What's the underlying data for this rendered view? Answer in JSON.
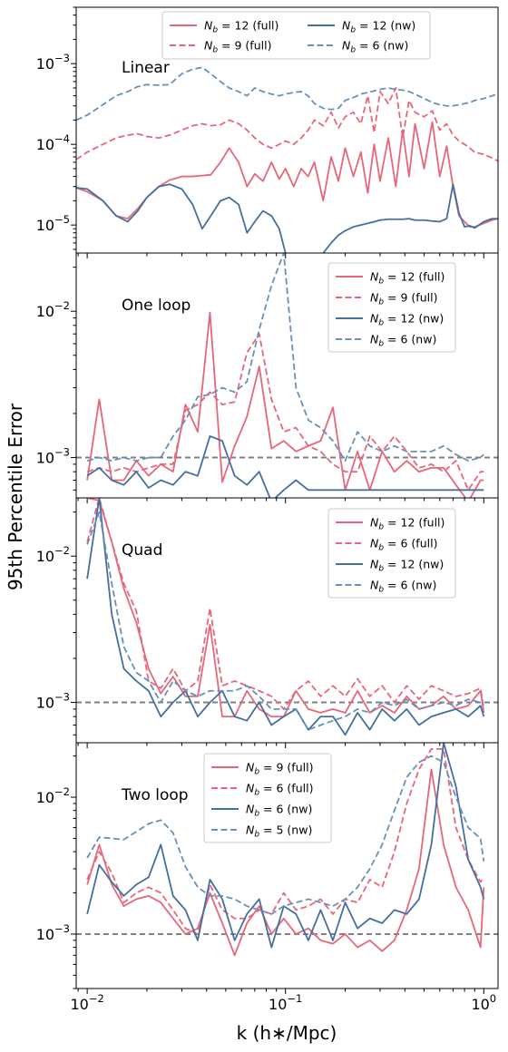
{
  "figure": {
    "ylabel": "95th Percentile Error",
    "xlabel": "k (h∗/Mpc)",
    "xscale": "log",
    "yscale": "log",
    "xlim": [
      0.0088,
      1.18
    ],
    "xticks": [
      {
        "value": 0.01,
        "mantissa": "10",
        "exp": "−2"
      },
      {
        "value": 0.1,
        "mantissa": "10",
        "exp": "−1"
      },
      {
        "value": 1,
        "mantissa": "10",
        "exp": "0"
      }
    ],
    "colors": {
      "full": "#e7677a",
      "nw": "#4470a0",
      "nw_dashed": "#6a90b8",
      "reference": "#808080"
    }
  },
  "chart_data": [
    {
      "type": "line",
      "label": "Linear",
      "ylim": [
        4.5e-06,
        0.005
      ],
      "yticks": [
        {
          "value": 1e-05,
          "mantissa": "10",
          "exp": "−5"
        },
        {
          "value": 0.0001,
          "mantissa": "10",
          "exp": "−4"
        },
        {
          "value": 0.001,
          "mantissa": "10",
          "exp": "−3"
        }
      ],
      "reference_line": null,
      "legend": {
        "placement": "top-center",
        "columns": 2
      },
      "x": [
        0.0088,
        0.01,
        0.012,
        0.014,
        0.016,
        0.018,
        0.02,
        0.023,
        0.026,
        0.03,
        0.034,
        0.038,
        0.042,
        0.047,
        0.052,
        0.058,
        0.064,
        0.07,
        0.077,
        0.085,
        0.093,
        0.1,
        0.11,
        0.12,
        0.13,
        0.14,
        0.155,
        0.17,
        0.185,
        0.2,
        0.22,
        0.24,
        0.26,
        0.28,
        0.3,
        0.33,
        0.36,
        0.39,
        0.42,
        0.45,
        0.5,
        0.55,
        0.6,
        0.65,
        0.7,
        0.75,
        0.8,
        0.85,
        0.9,
        1.0,
        1.1,
        1.18
      ],
      "series": [
        {
          "name": "N_b = 12 (full)",
          "color": "#e7677a",
          "dash": "solid",
          "values": [
            2.9e-05,
            2.6e-05,
            2e-05,
            1.3e-05,
            1.2e-05,
            1.6e-05,
            2.2e-05,
            3e-05,
            3.6e-05,
            4e-05,
            4e-05,
            4.1e-05,
            4.2e-05,
            6e-05,
            9e-05,
            6e-05,
            3e-05,
            4.3e-05,
            3.5e-05,
            6e-05,
            3.7e-05,
            5e-05,
            3e-05,
            5e-05,
            4e-05,
            6e-05,
            2e-05,
            7e-05,
            3.5e-05,
            9e-05,
            4e-05,
            8e-05,
            2.5e-05,
            0.0001,
            3.5e-05,
            0.00012,
            3e-05,
            0.00015,
            4e-05,
            0.00018,
            5e-05,
            0.00019,
            4e-05,
            9.5e-05,
            3e-05,
            1.3e-05,
            1.1e-05,
            9.5e-06,
            9.5e-06,
            1.05e-05,
            1.15e-05,
            1.2e-05
          ]
        },
        {
          "name": "N_b = 9 (full)",
          "color": "#e7677a",
          "dash": "dashed",
          "values": [
            6.5e-05,
            8e-05,
            0.0001,
            0.00012,
            0.00013,
            0.000135,
            0.000125,
            0.00012,
            0.00013,
            0.00015,
            0.00017,
            0.00018,
            0.00017,
            0.000175,
            0.0002,
            0.00018,
            0.00015,
            0.00012,
            0.0001,
            9e-05,
            0.0001,
            0.00011,
            0.0001,
            0.00012,
            0.00015,
            0.0002,
            0.00017,
            0.00025,
            0.00016,
            0.00022,
            0.00025,
            0.00018,
            0.0004,
            0.00014,
            0.00045,
            0.00032,
            0.0005,
            0.00012,
            0.00035,
            0.00025,
            0.00022,
            0.00026,
            0.00015,
            0.00018,
            0.00013,
            0.00011,
            0.0001,
            9e-05,
            8e-05,
            7.5e-05,
            6.8e-05,
            6.2e-05
          ]
        },
        {
          "name": "N_b = 12 (nw)",
          "color": "#4470a0",
          "dash": "solid",
          "values": [
            2.9e-05,
            2.8e-05,
            2e-05,
            1.3e-05,
            1.1e-05,
            1.5e-05,
            2.2e-05,
            3e-05,
            3.2e-05,
            2.8e-05,
            1.8e-05,
            9e-06,
            1.3e-05,
            2e-05,
            2.2e-05,
            1.8e-05,
            8e-06,
            1.1e-05,
            1.5e-05,
            1.3e-05,
            9e-06,
            4.5e-06,
            null,
            null,
            null,
            null,
            4.5e-06,
            6e-06,
            7.5e-06,
            8.5e-06,
            9.5e-06,
            1e-05,
            1.05e-05,
            1.1e-05,
            1.15e-05,
            1.18e-05,
            1.18e-05,
            1.18e-05,
            1.2e-05,
            1.15e-05,
            1.15e-05,
            1.12e-05,
            1.1e-05,
            1.2e-05,
            3.2e-05,
            1.4e-05,
            9.5e-06,
            9.8e-06,
            9.2e-06,
            1.1e-05,
            1.2e-05,
            1.2e-05
          ]
        },
        {
          "name": "N_b = 6 (nw)",
          "color": "#6a90b8",
          "dash": "dashed",
          "values": [
            0.0002,
            0.00023,
            0.00031,
            0.0004,
            0.00045,
            0.00052,
            0.00055,
            0.00054,
            0.00055,
            0.00075,
            0.00085,
            0.0009,
            0.00075,
            0.0006,
            0.0005,
            0.00045,
            0.0004,
            0.0005,
            0.00045,
            0.00042,
            0.0004,
            0.00042,
            0.00044,
            0.00045,
            0.0004,
            0.00032,
            0.00028,
            0.00027,
            0.00028,
            0.00035,
            0.00038,
            0.00042,
            0.00044,
            0.00046,
            0.00048,
            0.0005,
            0.00048,
            0.00047,
            0.00045,
            0.00042,
            0.00037,
            0.00033,
            0.00031,
            0.0003,
            0.0003,
            0.00031,
            0.00032,
            0.00033,
            0.00035,
            0.00037,
            0.0004,
            0.00042
          ]
        }
      ]
    },
    {
      "type": "line",
      "label": "One loop",
      "ylim": [
        0.00053,
        0.025
      ],
      "yticks": [
        {
          "value": 0.001,
          "mantissa": "10",
          "exp": "−3"
        },
        {
          "value": 0.01,
          "mantissa": "10",
          "exp": "−2"
        }
      ],
      "reference_line": 0.001,
      "legend": {
        "placement": "top-right",
        "columns": 1
      },
      "x": [
        0.01,
        0.0115,
        0.0133,
        0.0153,
        0.0177,
        0.0204,
        0.0235,
        0.0271,
        0.0313,
        0.0361,
        0.0416,
        0.048,
        0.0554,
        0.0639,
        0.0737,
        0.085,
        0.098,
        0.113,
        0.1304,
        0.1504,
        0.1735,
        0.2001,
        0.2309,
        0.2663,
        0.3072,
        0.3544,
        0.4088,
        0.4716,
        0.544,
        0.6275,
        0.7239,
        0.835,
        0.9633,
        1.0
      ],
      "series": [
        {
          "name": "N_b = 12 (full)",
          "color": "#e7677a",
          "dash": "solid",
          "values": [
            0.0007,
            0.0025,
            0.0007,
            0.0007,
            0.00095,
            0.00075,
            0.0009,
            0.0008,
            0.0023,
            0.0015,
            0.0098,
            0.00068,
            0.0012,
            0.0019,
            0.0042,
            0.00115,
            0.0013,
            0.0011,
            0.0012,
            0.0013,
            0.0022,
            0.0006,
            0.0011,
            0.0006,
            0.0011,
            0.0008,
            0.00095,
            0.0008,
            0.00085,
            0.00085,
            0.00065,
            0.0005,
            0.0007,
            0.0007
          ]
        },
        {
          "name": "N_b = 9 (full)",
          "color": "#e7677a",
          "dash": "dashed",
          "values": [
            0.0008,
            0.00085,
            0.0008,
            0.00085,
            0.0008,
            0.00085,
            0.0009,
            0.0009,
            0.0021,
            0.0023,
            0.0028,
            0.0023,
            0.0024,
            0.0052,
            0.007,
            0.0025,
            0.0015,
            0.0016,
            0.0012,
            0.0011,
            0.0009,
            0.0008,
            0.0008,
            0.0014,
            0.0011,
            0.0014,
            0.0011,
            0.00085,
            0.0009,
            0.0008,
            0.00095,
            0.0006,
            0.0008,
            0.0008
          ]
        },
        {
          "name": "N_b = 12 (nw)",
          "color": "#4470a0",
          "dash": "solid",
          "values": [
            0.00075,
            0.00085,
            0.0007,
            0.00065,
            0.0008,
            0.00062,
            0.0007,
            0.00065,
            0.0008,
            0.00075,
            0.0014,
            0.0013,
            0.00075,
            0.00065,
            0.0008,
            0.0005,
            0.0006,
            0.0007,
            0.0006,
            0.0006,
            0.0006,
            0.0006,
            0.0006,
            0.0006,
            0.0006,
            0.0006,
            0.0006,
            0.0006,
            0.0006,
            0.0006,
            0.0006,
            0.0006,
            0.0006,
            0.0006
          ]
        },
        {
          "name": "N_b = 6 (nw)",
          "color": "#6a90b8",
          "dash": "dashed",
          "values": [
            0.00095,
            0.001,
            0.00095,
            0.001,
            0.00095,
            0.001,
            0.001,
            0.0014,
            0.0018,
            0.0026,
            0.0027,
            0.003,
            0.0028,
            0.0033,
            0.0075,
            0.015,
            0.025,
            0.003,
            0.0018,
            0.0016,
            0.0013,
            0.00095,
            0.0015,
            0.0012,
            0.0011,
            0.0012,
            0.0011,
            0.0011,
            0.0011,
            0.0012,
            0.00105,
            0.00095,
            0.001,
            0.00105
          ]
        }
      ]
    },
    {
      "type": "line",
      "label": "Quad",
      "ylim": [
        0.00053,
        0.025
      ],
      "yticks": [
        {
          "value": 0.001,
          "mantissa": "10",
          "exp": "−3"
        },
        {
          "value": 0.01,
          "mantissa": "10",
          "exp": "−2"
        }
      ],
      "reference_line": 0.001,
      "legend": {
        "placement": "top-right",
        "columns": 1
      },
      "x": [
        0.01,
        0.0115,
        0.0133,
        0.0153,
        0.0177,
        0.0204,
        0.0235,
        0.0271,
        0.0313,
        0.0361,
        0.0416,
        0.048,
        0.0554,
        0.0639,
        0.0737,
        0.085,
        0.098,
        0.113,
        0.1304,
        0.1504,
        0.1735,
        0.2001,
        0.2309,
        0.2663,
        0.3072,
        0.3544,
        0.4088,
        0.4716,
        0.544,
        0.6275,
        0.7239,
        0.835,
        0.9633,
        1.0
      ],
      "series": [
        {
          "name": "N_b = 12 (full)",
          "color": "#e7677a",
          "dash": "solid",
          "values": [
            0.025,
            0.024,
            0.0125,
            0.006,
            0.0035,
            0.0017,
            0.00115,
            0.0015,
            0.0011,
            0.0011,
            0.0034,
            0.0008,
            0.0008,
            0.0012,
            0.0009,
            0.0008,
            0.0008,
            0.0012,
            0.0009,
            0.00085,
            0.0009,
            0.00085,
            0.0012,
            0.00085,
            0.00095,
            0.00085,
            0.0011,
            0.0009,
            0.00095,
            0.0011,
            0.0009,
            0.00095,
            0.0012,
            0.00085
          ]
        },
        {
          "name": "N_b = 6 (full)",
          "color": "#e7677a",
          "dash": "dashed",
          "values": [
            0.0125,
            0.025,
            0.0125,
            0.0065,
            0.0042,
            0.0014,
            0.00125,
            0.0017,
            0.0012,
            0.0014,
            0.0044,
            0.0013,
            0.0014,
            0.0013,
            0.0012,
            0.0011,
            0.0009,
            0.0012,
            0.0014,
            0.0011,
            0.0013,
            0.0011,
            0.00145,
            0.0011,
            0.0013,
            0.001,
            0.0013,
            0.00105,
            0.0013,
            0.0012,
            0.0011,
            0.00115,
            0.00125,
            0.0009
          ]
        },
        {
          "name": "N_b = 12 (nw)",
          "color": "#4470a0",
          "dash": "solid",
          "values": [
            0.007,
            0.025,
            0.004,
            0.0017,
            0.0014,
            0.0012,
            0.0008,
            0.001,
            0.0012,
            0.0008,
            0.001,
            0.0012,
            0.0008,
            0.00075,
            0.001,
            0.0007,
            0.0008,
            0.0009,
            0.00065,
            0.0008,
            0.0008,
            0.0006,
            0.00085,
            0.00065,
            0.0009,
            0.00075,
            0.0009,
            0.0007,
            0.0008,
            0.00085,
            0.0009,
            0.0008,
            0.00095,
            0.0008
          ]
        },
        {
          "name": "N_b = 6 (nw)",
          "color": "#6a90b8",
          "dash": "dashed",
          "values": [
            0.012,
            0.02,
            0.0065,
            0.0024,
            0.0016,
            0.0014,
            0.001,
            0.0014,
            0.0012,
            0.0011,
            0.0012,
            0.0012,
            0.0012,
            0.0013,
            0.0011,
            0.0009,
            0.0009,
            0.0009,
            0.00065,
            0.0007,
            0.00075,
            0.0008,
            0.0009,
            0.00085,
            0.001,
            0.00095,
            0.00105,
            0.0009,
            0.00095,
            0.001,
            0.00095,
            0.00105,
            0.001,
            0.00095
          ]
        }
      ]
    },
    {
      "type": "line",
      "label": "Two loop",
      "ylim": [
        0.0004,
        0.025
      ],
      "yticks": [
        {
          "value": 0.001,
          "mantissa": "10",
          "exp": "−3"
        },
        {
          "value": 0.01,
          "mantissa": "10",
          "exp": "−2"
        }
      ],
      "reference_line": 0.001,
      "legend": {
        "placement": "top-center",
        "columns": 1
      },
      "x": [
        0.01,
        0.0115,
        0.0133,
        0.0153,
        0.0177,
        0.0204,
        0.0235,
        0.0271,
        0.0313,
        0.0361,
        0.0416,
        0.048,
        0.0554,
        0.0639,
        0.0737,
        0.085,
        0.098,
        0.113,
        0.1304,
        0.1504,
        0.1735,
        0.2001,
        0.2309,
        0.2663,
        0.3072,
        0.3544,
        0.4088,
        0.4716,
        0.544,
        0.6275,
        0.7239,
        0.835,
        0.9633,
        1.0
      ],
      "series": [
        {
          "name": "N_b = 9 (full)",
          "color": "#e7677a",
          "dash": "solid",
          "values": [
            0.0023,
            0.0045,
            0.0023,
            0.0016,
            0.0018,
            0.0019,
            0.0017,
            0.0013,
            0.001,
            0.0011,
            0.002,
            0.0012,
            0.0007,
            0.0012,
            0.0016,
            0.001,
            0.0013,
            0.001,
            0.0011,
            0.0009,
            0.00085,
            0.001,
            0.0008,
            0.0009,
            0.00075,
            0.0009,
            0.0015,
            0.003,
            0.016,
            0.0045,
            0.0022,
            0.0015,
            0.0008,
            0.0022
          ]
        },
        {
          "name": "N_b = 6 (full)",
          "color": "#e7677a",
          "dash": "dashed",
          "values": [
            0.0025,
            0.004,
            0.0028,
            0.0017,
            0.002,
            0.0022,
            0.002,
            0.0015,
            0.0011,
            0.001,
            0.0023,
            0.0015,
            0.0013,
            0.0013,
            0.0015,
            0.0014,
            0.002,
            0.0015,
            0.0016,
            0.0018,
            0.0014,
            0.0018,
            0.0017,
            0.0025,
            0.0022,
            0.004,
            0.009,
            0.016,
            0.0225,
            0.0225,
            0.006,
            0.0035,
            0.0024,
            0.0026
          ]
        },
        {
          "name": "N_b = 6 (nw)",
          "color": "#4470a0",
          "dash": "solid",
          "values": [
            0.0014,
            0.0032,
            0.0024,
            0.0019,
            0.0023,
            0.0026,
            0.0045,
            0.0019,
            0.0015,
            0.0009,
            0.0025,
            0.0018,
            0.0009,
            0.0014,
            0.0018,
            0.0008,
            0.0016,
            0.0014,
            0.0009,
            0.0015,
            0.0009,
            0.0017,
            0.0011,
            0.0013,
            0.0012,
            0.0015,
            0.0014,
            0.0018,
            0.0045,
            0.025,
            0.012,
            0.0035,
            0.0022,
            0.0018
          ]
        },
        {
          "name": "N_b = 5 (nw)",
          "color": "#6a90b8",
          "dash": "dashed",
          "values": [
            0.0036,
            0.0051,
            0.005,
            0.0049,
            0.0056,
            0.0064,
            0.0068,
            0.0055,
            0.0031,
            0.0022,
            0.0019,
            0.0019,
            0.0018,
            0.0016,
            0.0015,
            0.0014,
            0.0016,
            0.0017,
            0.0018,
            0.0017,
            0.0016,
            0.0018,
            0.0022,
            0.003,
            0.0045,
            0.008,
            0.014,
            0.018,
            0.02,
            0.018,
            0.01,
            0.006,
            0.005,
            0.0034
          ]
        }
      ]
    }
  ]
}
